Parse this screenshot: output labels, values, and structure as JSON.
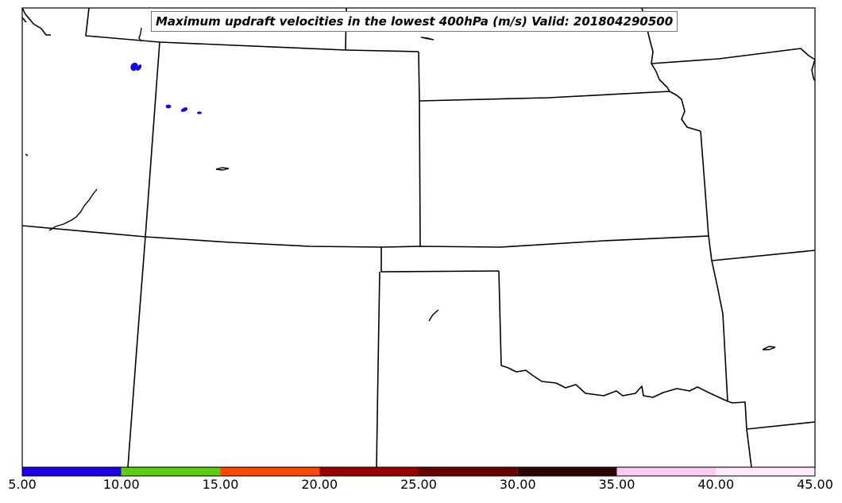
{
  "title": "Maximum updraft velocities in the lowest 400hPa (m/s) Valid: 201804290500",
  "colorbar": {
    "bins": [
      {
        "from": 5.0,
        "to": 10.0,
        "color": "#1c00e6"
      },
      {
        "from": 10.0,
        "to": 15.0,
        "color": "#5ccd10"
      },
      {
        "from": 15.0,
        "to": 20.0,
        "color": "#ff4500"
      },
      {
        "from": 20.0,
        "to": 25.0,
        "color": "#990000"
      },
      {
        "from": 25.0,
        "to": 30.0,
        "color": "#680000"
      },
      {
        "from": 30.0,
        "to": 35.0,
        "color": "#2e0000"
      },
      {
        "from": 35.0,
        "to": 40.0,
        "color": "#ffc8f5"
      },
      {
        "from": 40.0,
        "to": 45.0,
        "color": "#ffe9fb"
      }
    ],
    "tick_labels": [
      "5.00",
      "10.00",
      "15.00",
      "20.00",
      "25.00",
      "30.00",
      "35.00",
      "40.00",
      "45.00"
    ]
  },
  "colors": {
    "boundary": "#000000",
    "updraft_low": "#1c00e6"
  }
}
